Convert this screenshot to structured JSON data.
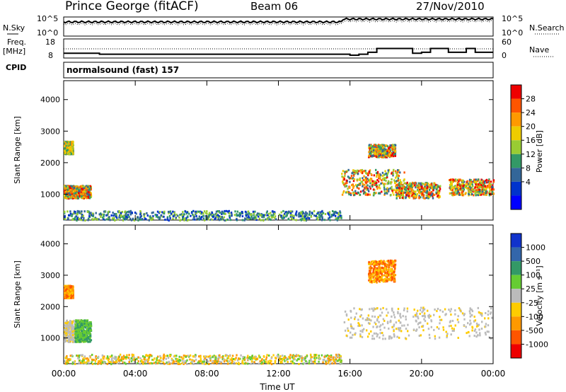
{
  "header": {
    "title": "Prince George (fitACF)",
    "beam": "Beam 06",
    "date": "27/Nov/2010"
  },
  "noise_panel": {
    "left_label": "N.Sky",
    "right_label": "N.Search",
    "left_ticks": [
      "10^5",
      "10^0"
    ],
    "right_ticks": [
      "10^5",
      "10^0"
    ]
  },
  "freq_panel": {
    "left_label_line1": "Freq.",
    "left_label_line2": "[MHz]",
    "left_ticks": [
      "18",
      "8"
    ],
    "right_ticks": [
      "60",
      "0"
    ],
    "right_label": "Nave",
    "cpid_label": "CPID",
    "freq_mhz": [
      [
        0,
        10.5
      ],
      [
        2,
        10.0
      ],
      [
        15.5,
        10.0
      ],
      [
        16,
        9.5
      ],
      [
        16.5,
        10.0
      ],
      [
        17,
        11.0
      ],
      [
        17.5,
        13.0
      ],
      [
        19,
        13.0
      ],
      [
        19.5,
        10.5
      ],
      [
        20,
        11.0
      ],
      [
        20.5,
        13.0
      ],
      [
        21,
        13.0
      ],
      [
        21.5,
        11.0
      ],
      [
        22.5,
        13.0
      ],
      [
        23,
        11.0
      ],
      [
        24,
        11.0
      ]
    ]
  },
  "cpid_text": "normalsound (fast) 157",
  "chart_data": [
    {
      "type": "heatmap",
      "title": "",
      "ylabel": "Slant Range [km]",
      "xlabel": "",
      "xlim": [
        0,
        24
      ],
      "ylim": [
        180,
        4600
      ],
      "yticks": [
        "1000",
        "2000",
        "3000",
        "4000"
      ],
      "colorbar": {
        "label": "Power [dB]",
        "ticks": [
          "28",
          "24",
          "20",
          "16",
          "12",
          "8",
          "4"
        ],
        "colors": [
          "#ee0000",
          "#ff5500",
          "#ff9900",
          "#eecc00",
          "#99cc33",
          "#339966",
          "#336699",
          "#0033cc",
          "#0000ff"
        ]
      },
      "regions": [
        {
          "x": [
            0.0,
            0.5
          ],
          "y": [
            900,
            1300
          ],
          "level": "high"
        },
        {
          "x": [
            0.5,
            1.5
          ],
          "y": [
            900,
            1300
          ],
          "level": "high"
        },
        {
          "x": [
            0.0,
            0.5
          ],
          "y": [
            2300,
            2700
          ],
          "level": "mid"
        },
        {
          "x": [
            15.5,
            19.0
          ],
          "y": [
            1000,
            1800
          ],
          "level": "high"
        },
        {
          "x": [
            17.0,
            18.5
          ],
          "y": [
            2200,
            2600
          ],
          "level": "high"
        },
        {
          "x": [
            18.5,
            21.0
          ],
          "y": [
            900,
            1400
          ],
          "level": "high"
        },
        {
          "x": [
            21.5,
            24.0
          ],
          "y": [
            1000,
            1500
          ],
          "level": "high"
        },
        {
          "x": [
            0.0,
            15.5
          ],
          "y": [
            200,
            500
          ],
          "level": "low"
        }
      ]
    },
    {
      "type": "heatmap",
      "title": "",
      "ylabel": "Slant Range [km]",
      "xlabel": "Time UT",
      "xlim": [
        0,
        24
      ],
      "ylim": [
        180,
        4600
      ],
      "yticks": [
        "1000",
        "2000",
        "3000",
        "4000"
      ],
      "xticks": [
        "00:00",
        "04:00",
        "08:00",
        "12:00",
        "16:00",
        "20:00",
        "00:00"
      ],
      "colorbar": {
        "label": "Velocity [m s⁻¹]",
        "ticks": [
          "1000",
          "500",
          "100",
          "25",
          "-25",
          "-100",
          "-500",
          "-1000"
        ],
        "colors": [
          "#1133cc",
          "#3366aa",
          "#339966",
          "#66cc33",
          "#bbbbbb",
          "#ffcc00",
          "#ff9900",
          "#ff5500",
          "#ee0000"
        ]
      },
      "regions": [
        {
          "x": [
            0.0,
            1.0
          ],
          "y": [
            900,
            1600
          ],
          "level": "grey"
        },
        {
          "x": [
            0.6,
            1.5
          ],
          "y": [
            900,
            1600
          ],
          "level": "green"
        },
        {
          "x": [
            0.0,
            0.5
          ],
          "y": [
            2300,
            2700
          ],
          "level": "orange"
        },
        {
          "x": [
            15.5,
            24.0
          ],
          "y": [
            1000,
            2000
          ],
          "level": "grey"
        },
        {
          "x": [
            17.0,
            18.5
          ],
          "y": [
            2800,
            3500
          ],
          "level": "orange"
        },
        {
          "x": [
            0.0,
            15.5
          ],
          "y": [
            200,
            500
          ],
          "level": "mixed"
        }
      ]
    }
  ]
}
